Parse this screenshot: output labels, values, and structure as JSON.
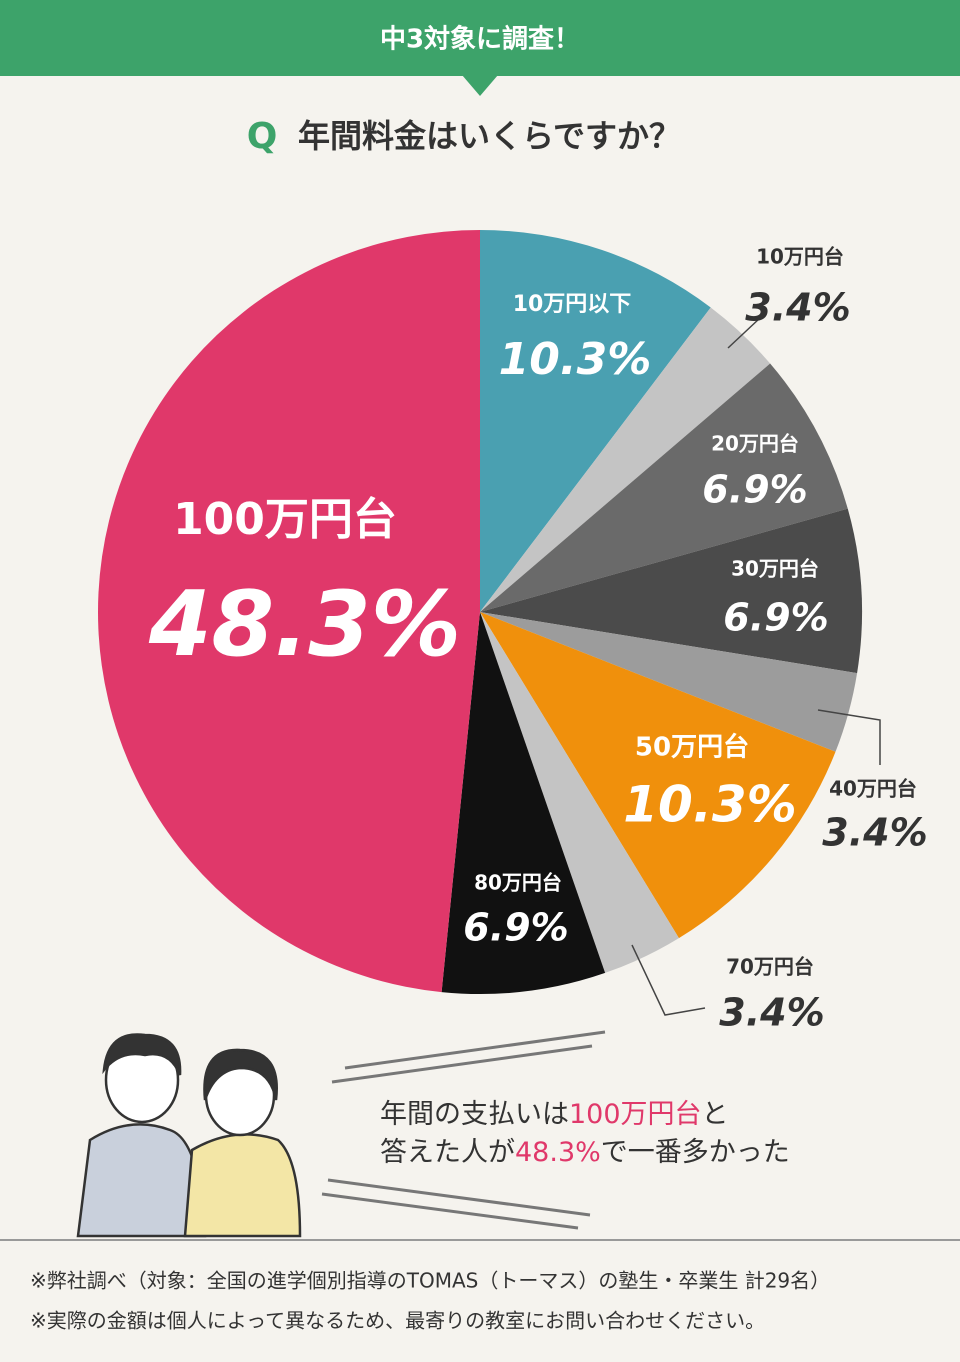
{
  "banner": "中3対象に調査！",
  "question": {
    "mark": "Q",
    "text": "年間料金はいくらですか？"
  },
  "chart_data": {
    "type": "pie",
    "categories": [
      "10万円以下",
      "10万円台",
      "20万円台",
      "30万円台",
      "40万円台",
      "50万円台",
      "70万円台",
      "80万円台",
      "100万円台"
    ],
    "values": [
      10.3,
      3.4,
      6.9,
      6.9,
      3.4,
      10.3,
      3.4,
      6.9,
      48.3
    ],
    "value_labels": [
      "10.3%",
      "3.4%",
      "6.9%",
      "6.9%",
      "3.4%",
      "10.3%",
      "3.4%",
      "6.9%",
      "48.3%"
    ],
    "colors": [
      "#4aa0b1",
      "#c4c4c4",
      "#6a6a6a",
      "#4b4b4b",
      "#9c9c9c",
      "#f0900c",
      "#c4c4c4",
      "#111111",
      "#e0386a"
    ]
  },
  "comment": {
    "line1": [
      "年間の支払いは",
      "100万円台",
      "と"
    ],
    "line2": [
      "答えた人が",
      "48.3%",
      "で一番多かった"
    ]
  },
  "notes": [
    "※弊社調べ（対象：全国の進学個別指導のTOMAS（トーマス）の塾生・卒業生 計29名）",
    "※実際の金額は個人によって異なるため、最寄りの教室にお問い合わせください。"
  ]
}
